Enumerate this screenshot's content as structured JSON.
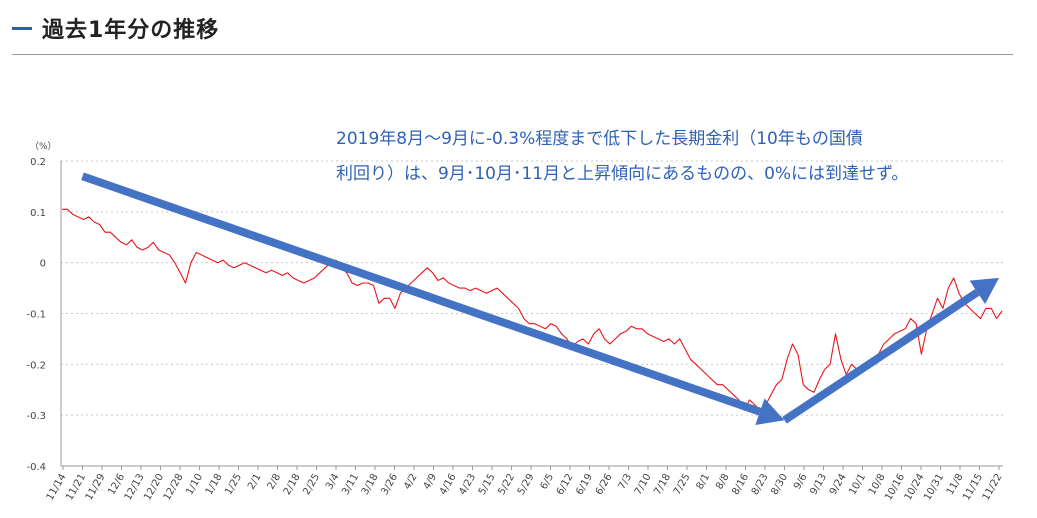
{
  "section": {
    "title": "過去1年分の推移"
  },
  "annotation": {
    "line1": "2019年8月～9月に-0.3%程度まで低下した長期金利（10年もの国債",
    "line2": "利回り）は、9月･10月･11月と上昇傾向にあるものの、0%には到達せず。",
    "color": "#2e62b8"
  },
  "chart_data": {
    "type": "line",
    "ylabel": "（%）",
    "ylim": [
      -0.4,
      0.2
    ],
    "yticks": [
      "0.2",
      "0.1",
      "0",
      "-0.1",
      "-0.2",
      "-0.3",
      "-0.4"
    ],
    "ytick_values": [
      0.2,
      0.1,
      0,
      -0.1,
      -0.2,
      -0.3,
      -0.4
    ],
    "grid": true,
    "x_tick_labels": [
      "11/14",
      "11/21",
      "11/29",
      "12/6",
      "12/13",
      "12/20",
      "12/28",
      "1/10",
      "1/18",
      "1/25",
      "2/1",
      "2/8",
      "2/18",
      "2/25",
      "3/4",
      "3/11",
      "3/18",
      "3/26",
      "4/2",
      "4/9",
      "4/16",
      "4/23",
      "5/15",
      "5/22",
      "5/29",
      "6/5",
      "6/12",
      "6/19",
      "6/26",
      "7/3",
      "7/10",
      "7/18",
      "7/25",
      "8/1",
      "8/8",
      "8/16",
      "8/23",
      "8/30",
      "9/6",
      "9/13",
      "9/24",
      "10/1",
      "10/8",
      "10/16",
      "10/24",
      "10/31",
      "11/8",
      "11/15",
      "11/22"
    ],
    "series": [
      {
        "color": "#e8141b",
        "values": [
          0.105,
          0.105,
          0.095,
          0.09,
          0.085,
          0.09,
          0.08,
          0.075,
          0.06,
          0.06,
          0.05,
          0.04,
          0.035,
          0.045,
          0.03,
          0.025,
          0.03,
          0.04,
          0.025,
          0.02,
          0.015,
          0.0,
          -0.02,
          -0.04,
          0.0,
          0.02,
          0.015,
          0.01,
          0.005,
          0.0,
          0.005,
          -0.005,
          -0.01,
          -0.005,
          0.0,
          -0.005,
          -0.01,
          -0.015,
          -0.02,
          -0.015,
          -0.02,
          -0.025,
          -0.02,
          -0.03,
          -0.035,
          -0.04,
          -0.035,
          -0.03,
          -0.02,
          -0.01,
          0.0,
          0.005,
          -0.01,
          -0.02,
          -0.04,
          -0.045,
          -0.04,
          -0.04,
          -0.045,
          -0.08,
          -0.07,
          -0.07,
          -0.09,
          -0.06,
          -0.05,
          -0.04,
          -0.03,
          -0.02,
          -0.01,
          -0.02,
          -0.035,
          -0.03,
          -0.04,
          -0.045,
          -0.05,
          -0.05,
          -0.055,
          -0.05,
          -0.055,
          -0.06,
          -0.055,
          -0.05,
          -0.06,
          -0.07,
          -0.08,
          -0.09,
          -0.11,
          -0.12,
          -0.12,
          -0.125,
          -0.13,
          -0.12,
          -0.125,
          -0.14,
          -0.15,
          -0.165,
          -0.155,
          -0.15,
          -0.16,
          -0.14,
          -0.13,
          -0.15,
          -0.16,
          -0.15,
          -0.14,
          -0.135,
          -0.125,
          -0.13,
          -0.13,
          -0.14,
          -0.145,
          -0.15,
          -0.155,
          -0.15,
          -0.16,
          -0.15,
          -0.17,
          -0.19,
          -0.2,
          -0.21,
          -0.22,
          -0.23,
          -0.24,
          -0.24,
          -0.25,
          -0.26,
          -0.27,
          -0.29,
          -0.27,
          -0.28,
          -0.29,
          -0.28,
          -0.26,
          -0.24,
          -0.23,
          -0.19,
          -0.16,
          -0.18,
          -0.24,
          -0.25,
          -0.255,
          -0.23,
          -0.21,
          -0.2,
          -0.14,
          -0.19,
          -0.22,
          -0.2,
          -0.21,
          -0.21,
          -0.2,
          -0.19,
          -0.18,
          -0.16,
          -0.15,
          -0.14,
          -0.135,
          -0.13,
          -0.11,
          -0.12,
          -0.18,
          -0.13,
          -0.1,
          -0.07,
          -0.09,
          -0.05,
          -0.03,
          -0.06,
          -0.08,
          -0.09,
          -0.1,
          -0.11,
          -0.09,
          -0.09,
          -0.11,
          -0.095
        ]
      }
    ],
    "arrows": [
      {
        "from": {
          "x_label": "11/21",
          "y": 0.17
        },
        "to": {
          "x_label": "8/30",
          "y": -0.31
        },
        "color": "#4472c4"
      },
      {
        "from": {
          "x_label": "8/30",
          "y": -0.31
        },
        "to": {
          "x_label": "11/22",
          "y": -0.03
        },
        "color": "#4472c4"
      }
    ]
  }
}
